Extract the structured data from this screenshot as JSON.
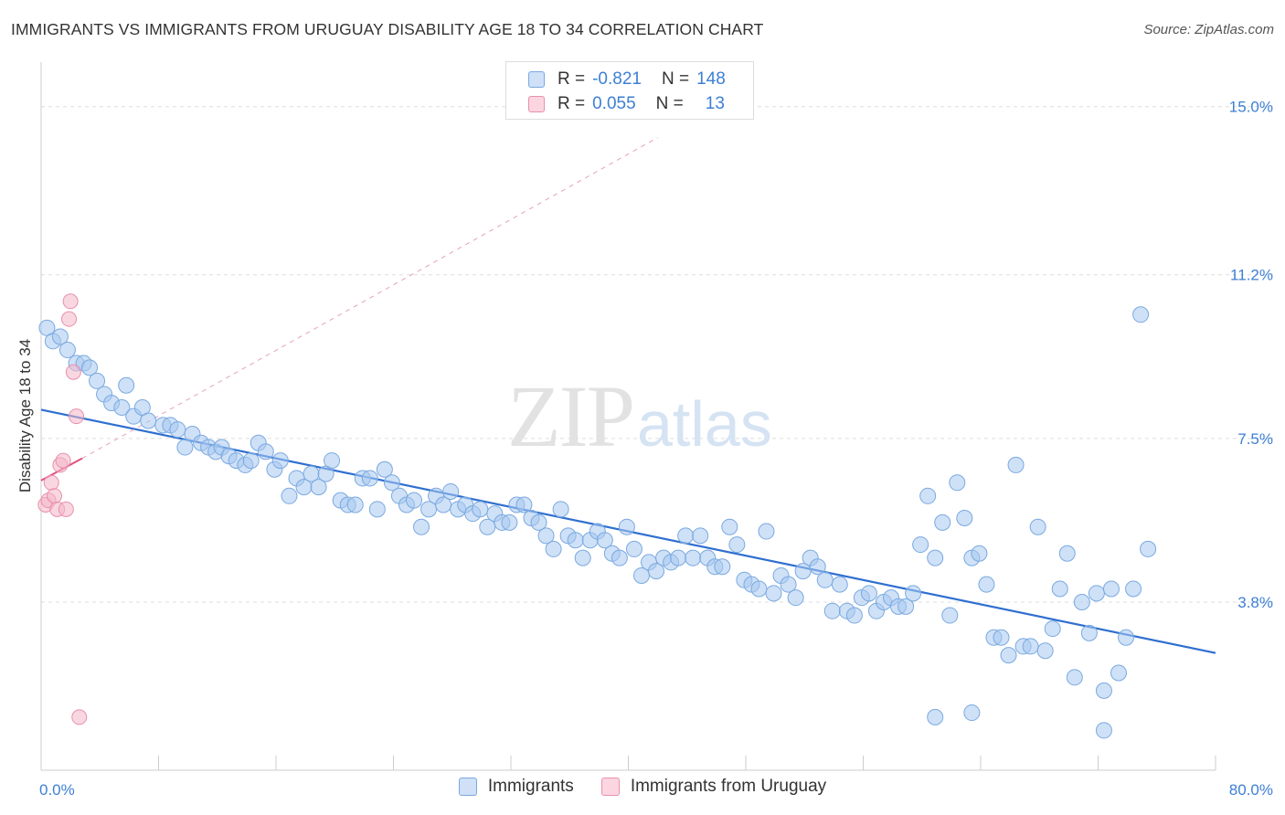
{
  "header": {
    "title": "IMMIGRANTS VS IMMIGRANTS FROM URUGUAY DISABILITY AGE 18 TO 34 CORRELATION CHART",
    "source": "Source: ZipAtlas.com"
  },
  "watermark": {
    "zip": "ZIP",
    "atlas": "atlas"
  },
  "legend_top": {
    "rows": [
      {
        "r_label": "R =",
        "r_value": "-0.821",
        "n_label": "N =",
        "n_value": "148",
        "color": "#a8c8f0"
      },
      {
        "r_label": "R =",
        "r_value": "0.055",
        "n_label": "N =",
        "n_value": "13",
        "color": "#f4b6c8"
      }
    ]
  },
  "legend_bottom": {
    "items": [
      {
        "label": "Immigrants",
        "color": "#a8c8f0"
      },
      {
        "label": "Immigrants from Uruguay",
        "color": "#f4b6c8"
      }
    ]
  },
  "chart_data": {
    "type": "scatter",
    "title": "IMMIGRANTS VS IMMIGRANTS FROM URUGUAY DISABILITY AGE 18 TO 34 CORRELATION CHART",
    "xlabel": "",
    "ylabel": "Disability Age 18 to 34",
    "xlim": [
      0,
      80
    ],
    "ylim": [
      0,
      15.8
    ],
    "x_tick_labels": [
      "0.0%",
      "80.0%"
    ],
    "y_ticks": [
      3.8,
      7.5,
      11.2,
      15.0
    ],
    "y_tick_labels": [
      "3.8%",
      "7.5%",
      "11.2%",
      "15.0%"
    ],
    "grid": "horizontal dashed",
    "legend_position": "top-center",
    "series": [
      {
        "name": "Immigrants",
        "color": "#a8c8f0",
        "edge_color": "#7aa9e0",
        "trend": {
          "x": [
            0,
            80
          ],
          "y": [
            8.15,
            2.65
          ],
          "color": "#2f6fd0"
        },
        "points": [
          [
            0.4,
            10.0
          ],
          [
            0.8,
            9.7
          ],
          [
            1.3,
            9.8
          ],
          [
            1.8,
            9.5
          ],
          [
            2.4,
            9.2
          ],
          [
            2.9,
            9.2
          ],
          [
            3.3,
            9.1
          ],
          [
            3.8,
            8.8
          ],
          [
            4.3,
            8.5
          ],
          [
            4.8,
            8.3
          ],
          [
            5.5,
            8.2
          ],
          [
            5.8,
            8.7
          ],
          [
            6.3,
            8.0
          ],
          [
            6.9,
            8.2
          ],
          [
            7.3,
            7.9
          ],
          [
            8.3,
            7.8
          ],
          [
            8.8,
            7.8
          ],
          [
            9.3,
            7.7
          ],
          [
            9.8,
            7.3
          ],
          [
            10.3,
            7.6
          ],
          [
            10.9,
            7.4
          ],
          [
            11.4,
            7.3
          ],
          [
            11.9,
            7.2
          ],
          [
            12.3,
            7.3
          ],
          [
            12.8,
            7.1
          ],
          [
            13.3,
            7.0
          ],
          [
            13.9,
            6.9
          ],
          [
            14.3,
            7.0
          ],
          [
            14.8,
            7.4
          ],
          [
            15.3,
            7.2
          ],
          [
            15.9,
            6.8
          ],
          [
            16.3,
            7.0
          ],
          [
            16.9,
            6.2
          ],
          [
            17.4,
            6.6
          ],
          [
            17.9,
            6.4
          ],
          [
            18.4,
            6.7
          ],
          [
            18.9,
            6.4
          ],
          [
            19.4,
            6.7
          ],
          [
            19.8,
            7.0
          ],
          [
            20.4,
            6.1
          ],
          [
            20.9,
            6.0
          ],
          [
            21.4,
            6.0
          ],
          [
            21.9,
            6.6
          ],
          [
            22.4,
            6.6
          ],
          [
            22.9,
            5.9
          ],
          [
            23.4,
            6.8
          ],
          [
            23.9,
            6.5
          ],
          [
            24.4,
            6.2
          ],
          [
            24.9,
            6.0
          ],
          [
            25.4,
            6.1
          ],
          [
            25.9,
            5.5
          ],
          [
            26.4,
            5.9
          ],
          [
            26.9,
            6.2
          ],
          [
            27.4,
            6.0
          ],
          [
            27.9,
            6.3
          ],
          [
            28.4,
            5.9
          ],
          [
            28.9,
            6.0
          ],
          [
            29.4,
            5.8
          ],
          [
            29.9,
            5.9
          ],
          [
            30.4,
            5.5
          ],
          [
            30.9,
            5.8
          ],
          [
            31.4,
            5.6
          ],
          [
            31.9,
            5.6
          ],
          [
            32.4,
            6.0
          ],
          [
            32.9,
            6.0
          ],
          [
            33.4,
            5.7
          ],
          [
            33.9,
            5.6
          ],
          [
            34.4,
            5.3
          ],
          [
            34.9,
            5.0
          ],
          [
            35.4,
            5.9
          ],
          [
            35.9,
            5.3
          ],
          [
            36.4,
            5.2
          ],
          [
            36.9,
            4.8
          ],
          [
            37.4,
            5.2
          ],
          [
            37.9,
            5.4
          ],
          [
            38.4,
            5.2
          ],
          [
            38.9,
            4.9
          ],
          [
            39.4,
            4.8
          ],
          [
            39.9,
            5.5
          ],
          [
            40.4,
            5.0
          ],
          [
            40.9,
            4.4
          ],
          [
            41.4,
            4.7
          ],
          [
            41.9,
            4.5
          ],
          [
            42.4,
            4.8
          ],
          [
            42.9,
            4.7
          ],
          [
            43.4,
            4.8
          ],
          [
            43.9,
            5.3
          ],
          [
            44.4,
            4.8
          ],
          [
            44.9,
            5.3
          ],
          [
            45.4,
            4.8
          ],
          [
            45.9,
            4.6
          ],
          [
            46.4,
            4.6
          ],
          [
            46.9,
            5.5
          ],
          [
            47.4,
            5.1
          ],
          [
            47.9,
            4.3
          ],
          [
            48.4,
            4.2
          ],
          [
            48.9,
            4.1
          ],
          [
            49.4,
            5.4
          ],
          [
            49.9,
            4.0
          ],
          [
            50.4,
            4.4
          ],
          [
            50.9,
            4.2
          ],
          [
            51.4,
            3.9
          ],
          [
            51.9,
            4.5
          ],
          [
            52.4,
            4.8
          ],
          [
            52.9,
            4.6
          ],
          [
            53.4,
            4.3
          ],
          [
            53.9,
            3.6
          ],
          [
            54.4,
            4.2
          ],
          [
            54.9,
            3.6
          ],
          [
            55.4,
            3.5
          ],
          [
            55.9,
            3.9
          ],
          [
            56.4,
            4.0
          ],
          [
            56.9,
            3.6
          ],
          [
            57.4,
            3.8
          ],
          [
            57.9,
            3.9
          ],
          [
            58.4,
            3.7
          ],
          [
            58.9,
            3.7
          ],
          [
            59.4,
            4.0
          ],
          [
            59.9,
            5.1
          ],
          [
            60.4,
            6.2
          ],
          [
            60.9,
            4.8
          ],
          [
            61.4,
            5.6
          ],
          [
            61.9,
            3.5
          ],
          [
            62.4,
            6.5
          ],
          [
            62.9,
            5.7
          ],
          [
            63.4,
            4.8
          ],
          [
            63.9,
            4.9
          ],
          [
            64.4,
            4.2
          ],
          [
            64.9,
            3.0
          ],
          [
            65.4,
            3.0
          ],
          [
            65.9,
            2.6
          ],
          [
            66.4,
            6.9
          ],
          [
            66.9,
            2.8
          ],
          [
            67.4,
            2.8
          ],
          [
            67.9,
            5.5
          ],
          [
            68.4,
            2.7
          ],
          [
            68.9,
            3.2
          ],
          [
            69.4,
            4.1
          ],
          [
            69.9,
            4.9
          ],
          [
            70.4,
            2.1
          ],
          [
            70.9,
            3.8
          ],
          [
            71.4,
            3.1
          ],
          [
            71.9,
            4.0
          ],
          [
            72.4,
            1.8
          ],
          [
            72.9,
            4.1
          ],
          [
            73.4,
            2.2
          ],
          [
            73.9,
            3.0
          ],
          [
            74.4,
            4.1
          ],
          [
            74.9,
            10.3
          ],
          [
            75.4,
            5.0
          ],
          [
            60.9,
            1.2
          ],
          [
            63.4,
            1.3
          ],
          [
            72.4,
            0.9
          ]
        ]
      },
      {
        "name": "Immigrants from Uruguay",
        "color": "#f4b6c8",
        "edge_color": "#e98fad",
        "trend": {
          "x": [
            0,
            2.8
          ],
          "y": [
            6.55,
            7.05
          ],
          "color": "#e0507f",
          "dashed_extension": {
            "x": [
              2.8,
              42.0
            ],
            "y": [
              7.05,
              14.3
            ]
          }
        },
        "points": [
          [
            0.3,
            6.0
          ],
          [
            0.5,
            6.1
          ],
          [
            0.7,
            6.5
          ],
          [
            0.9,
            6.2
          ],
          [
            1.1,
            5.9
          ],
          [
            1.3,
            6.9
          ],
          [
            1.5,
            7.0
          ],
          [
            1.7,
            5.9
          ],
          [
            1.9,
            10.2
          ],
          [
            2.0,
            10.6
          ],
          [
            2.2,
            9.0
          ],
          [
            2.4,
            8.0
          ],
          [
            2.6,
            1.2
          ]
        ]
      }
    ]
  }
}
